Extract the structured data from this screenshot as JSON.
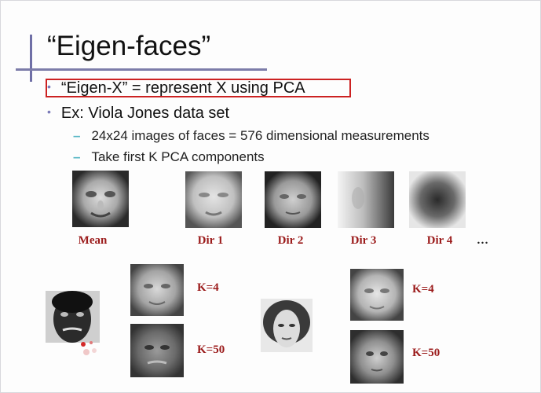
{
  "slide": {
    "title": "“Eigen-faces”",
    "bullets": [
      "“Eigen-X” = represent X using PCA",
      "Ex: Viola Jones data set"
    ],
    "sub_bullets": [
      "24x24 images of faces  = 576 dimensional measurements",
      "Take first K PCA components"
    ],
    "basis_labels": [
      "Mean",
      "Dir 1",
      "Dir 2",
      "Dir 3",
      "Dir 4"
    ],
    "ellipsis": "…",
    "recon_labels_left": [
      "K=4",
      "K=50"
    ],
    "recon_labels_right": [
      "K=4",
      "K=50"
    ]
  },
  "colors": {
    "highlight_box": "#cc2222",
    "caption": "#9b1b1b",
    "bullet": "#7a7ab8",
    "dash": "#56b6c4"
  },
  "icons": {
    "basis_images": [
      "mean-face-image",
      "dir1-face-image",
      "dir2-face-image",
      "dir3-face-image",
      "dir4-face-image"
    ]
  }
}
